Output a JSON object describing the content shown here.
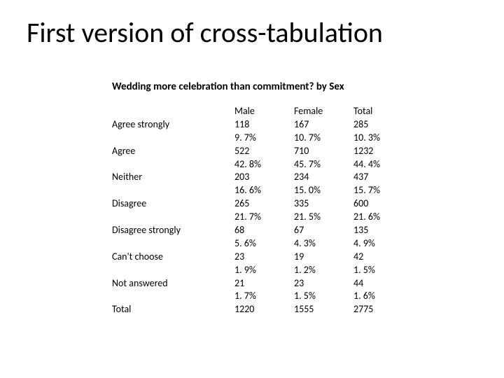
{
  "title": "First version of cross-tabulation",
  "subtitle": "Wedding more celebration than commitment? by Sex",
  "table": {
    "header": {
      "label": "",
      "c1": "Male",
      "c2": "Female",
      "c3": "Total"
    },
    "rows": [
      {
        "label": "Agree   strongly",
        "c1a": "118",
        "c2a": "167",
        "c3a": "285",
        "c1b": "9. 7%",
        "c2b": "10. 7%",
        "c3b": "10. 3%"
      },
      {
        "label": "Agree",
        "c1a": "522",
        "c2a": "710",
        "c3a": "1232",
        "c1b": "42. 8%",
        "c2b": "45. 7%",
        "c3b": "44. 4%"
      },
      {
        "label": "Neither",
        "c1a": "203",
        "c2a": "234",
        "c3a": "437",
        "c1b": "16. 6%",
        "c2b": "15. 0%",
        "c3b": "15. 7%"
      },
      {
        "label": "Disagree",
        "c1a": "265",
        "c2a": "335",
        "c3a": "600",
        "c1b": "21. 7%",
        "c2b": "21. 5%",
        "c3b": "21. 6%"
      },
      {
        "label": "Disagree strongly",
        "c1a": " 68",
        "c2a": "67",
        "c3a": "135",
        "c1b": "5. 6%",
        "c2b": "4. 3%",
        "c3b": "4. 9%"
      },
      {
        "label": "Can't choose",
        "c1a": "23",
        "c2a": "19",
        "c3a": "42",
        "c1b": "1. 9%",
        "c2b": "1. 2%",
        "c3b": "1. 5%"
      },
      {
        "label": "Not answered",
        "c1a": "21",
        "c2a": "23",
        "c3a": "44",
        "c1b": "1. 7%",
        "c2b": "1. 5%",
        "c3b": "1. 6%"
      },
      {
        "label": "Total",
        "c1a": "1220",
        "c2a": "1555",
        "c3a": "2775",
        "c1b": "",
        "c2b": "",
        "c3b": ""
      }
    ]
  },
  "colors": {
    "background": "#ffffff",
    "text": "#000000"
  },
  "typography": {
    "title_fontsize": 40,
    "subtitle_fontsize": 15,
    "body_fontsize": 14,
    "font_family": "Calibri"
  }
}
